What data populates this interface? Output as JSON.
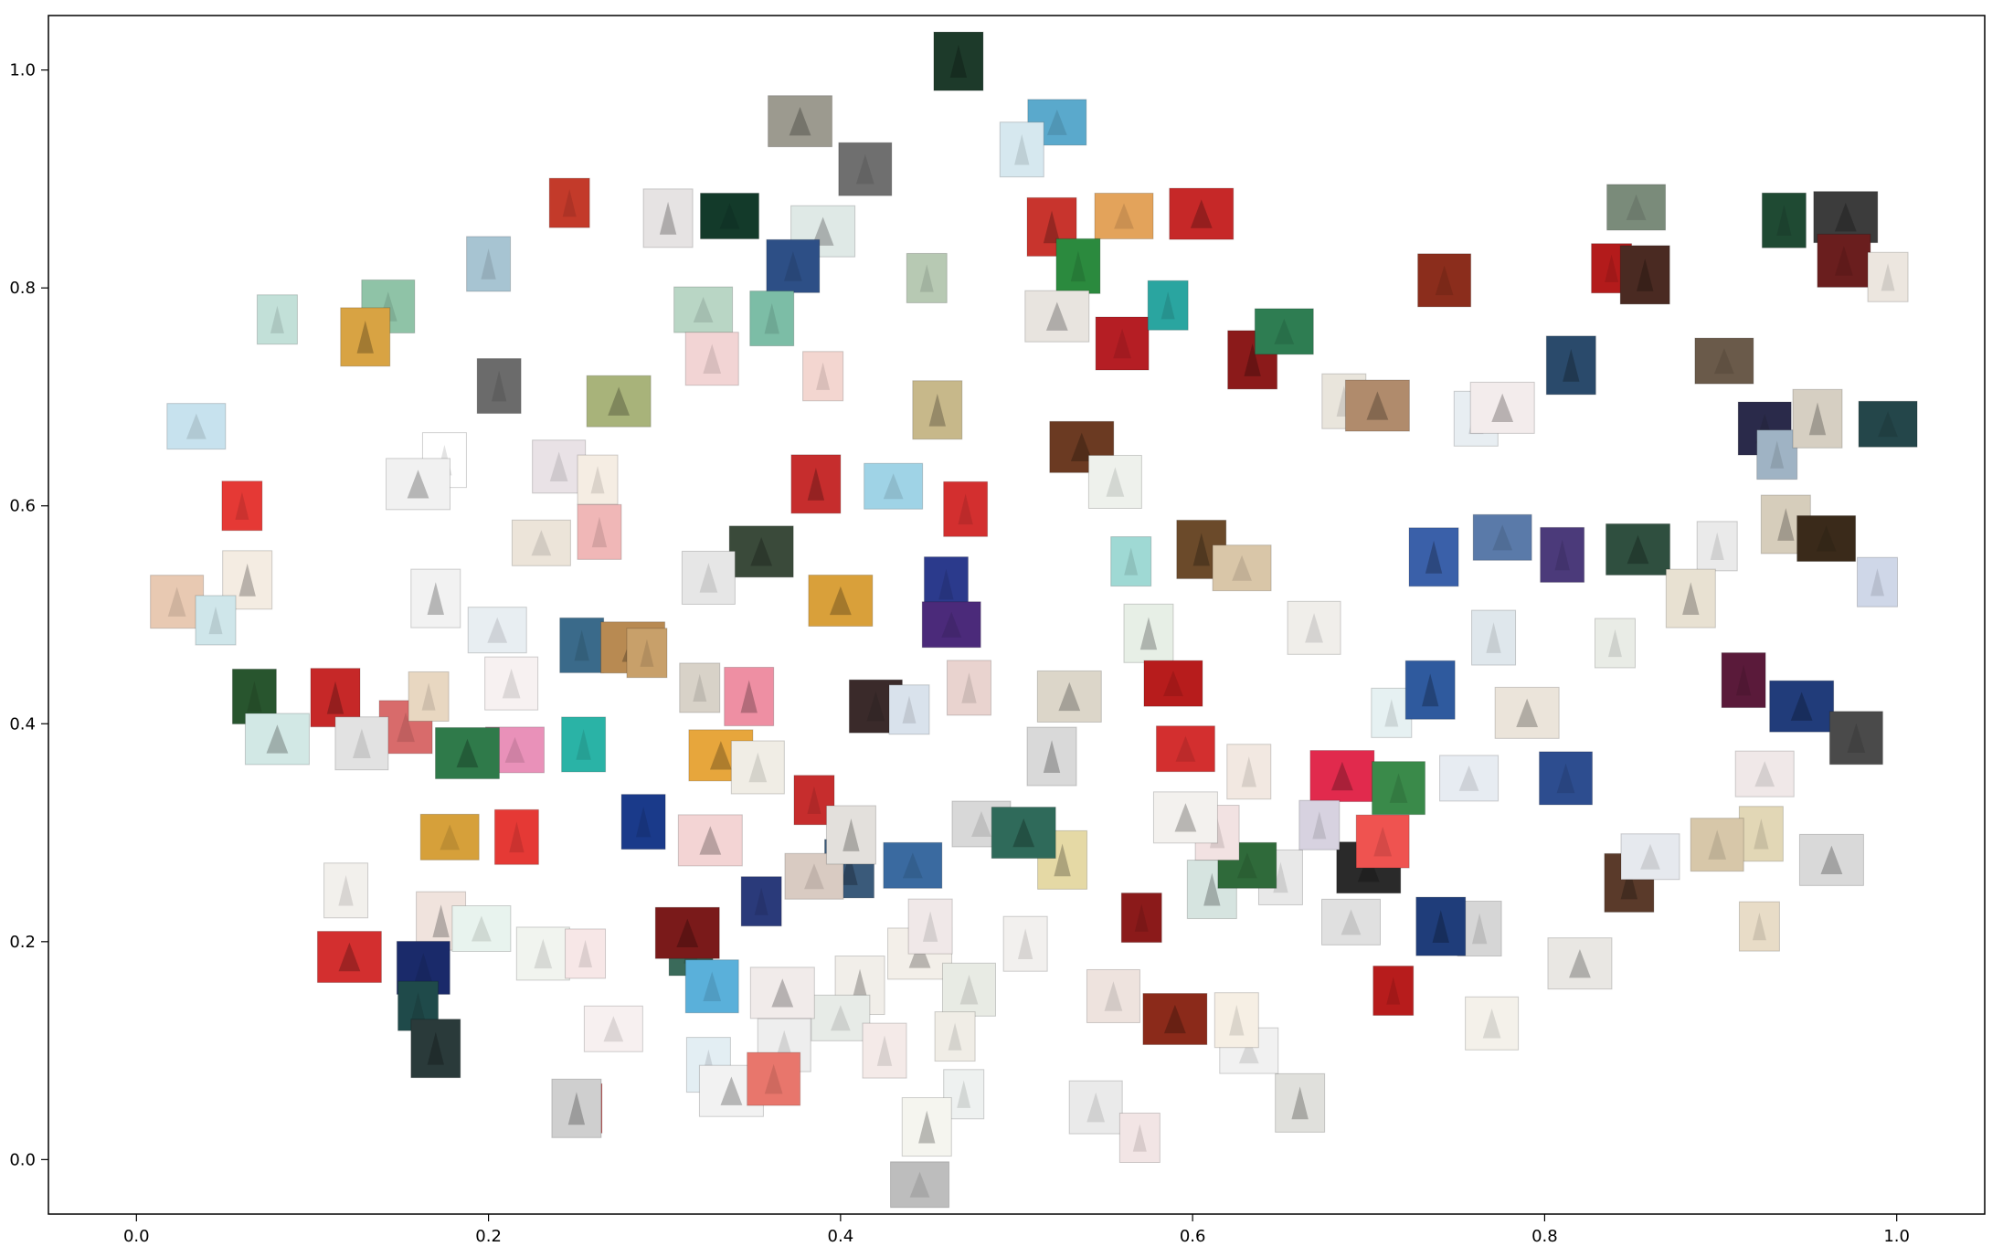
{
  "chart_data": {
    "type": "scatter",
    "title": "",
    "xlabel": "",
    "ylabel": "",
    "xlim": [
      -0.05,
      1.05
    ],
    "ylim": [
      -0.05,
      1.05
    ],
    "grid": false,
    "x_ticks": [
      0.0,
      0.2,
      0.4,
      0.6,
      0.8,
      1.0
    ],
    "x_tick_labels": [
      "0.0",
      "0.2",
      "0.4",
      "0.6",
      "0.8",
      "1.0"
    ],
    "y_ticks": [
      0.0,
      0.2,
      0.4,
      0.6,
      0.8,
      1.0
    ],
    "y_tick_labels": [
      "0.0",
      "0.2",
      "0.4",
      "0.6",
      "0.8",
      "1.0"
    ],
    "marker": "thumbnail-image",
    "points": [
      {
        "x": 0.467,
        "y": 1.008,
        "color": "#1d3a2a"
      },
      {
        "x": 0.523,
        "y": 0.952,
        "color": "#5aa9cc"
      },
      {
        "x": 0.503,
        "y": 0.927,
        "color": "#d6e8ef"
      },
      {
        "x": 0.377,
        "y": 0.953,
        "color": "#9c9a8f"
      },
      {
        "x": 0.414,
        "y": 0.909,
        "color": "#6f6f6f"
      },
      {
        "x": 0.246,
        "y": 0.878,
        "color": "#c33a2a"
      },
      {
        "x": 0.302,
        "y": 0.864,
        "color": "#e6e3e3"
      },
      {
        "x": 0.337,
        "y": 0.866,
        "color": "#133a2a"
      },
      {
        "x": 0.2,
        "y": 0.822,
        "color": "#a7c4d2"
      },
      {
        "x": 0.39,
        "y": 0.852,
        "color": "#dfe9e6"
      },
      {
        "x": 0.373,
        "y": 0.82,
        "color": "#2d4f86"
      },
      {
        "x": 0.449,
        "y": 0.809,
        "color": "#b7c9b3"
      },
      {
        "x": 0.52,
        "y": 0.856,
        "color": "#c8342d"
      },
      {
        "x": 0.561,
        "y": 0.866,
        "color": "#e3a35b"
      },
      {
        "x": 0.535,
        "y": 0.82,
        "color": "#2b8a3e"
      },
      {
        "x": 0.605,
        "y": 0.868,
        "color": "#c62828"
      },
      {
        "x": 0.143,
        "y": 0.783,
        "color": "#8fc3a7"
      },
      {
        "x": 0.08,
        "y": 0.771,
        "color": "#c2e0d8"
      },
      {
        "x": 0.13,
        "y": 0.755,
        "color": "#d8a343"
      },
      {
        "x": 0.322,
        "y": 0.78,
        "color": "#b9d6c5"
      },
      {
        "x": 0.361,
        "y": 0.772,
        "color": "#7cbda6"
      },
      {
        "x": 0.523,
        "y": 0.774,
        "color": "#e8e4df"
      },
      {
        "x": 0.56,
        "y": 0.749,
        "color": "#b51e24"
      },
      {
        "x": 0.586,
        "y": 0.784,
        "color": "#2aa5a0"
      },
      {
        "x": 0.634,
        "y": 0.734,
        "color": "#8b1a1a"
      },
      {
        "x": 0.652,
        "y": 0.76,
        "color": "#2e7d52"
      },
      {
        "x": 0.206,
        "y": 0.71,
        "color": "#6b6b6b"
      },
      {
        "x": 0.274,
        "y": 0.696,
        "color": "#a8b37a"
      },
      {
        "x": 0.327,
        "y": 0.735,
        "color": "#f2d4d4"
      },
      {
        "x": 0.39,
        "y": 0.719,
        "color": "#f3d6d0"
      },
      {
        "x": 0.455,
        "y": 0.688,
        "color": "#c7b88a"
      },
      {
        "x": 0.034,
        "y": 0.673,
        "color": "#c7e2ee"
      },
      {
        "x": 0.686,
        "y": 0.696,
        "color": "#e9e5dc"
      },
      {
        "x": 0.705,
        "y": 0.692,
        "color": "#b08b6c"
      },
      {
        "x": 0.743,
        "y": 0.807,
        "color": "#8b2d1c"
      },
      {
        "x": 0.838,
        "y": 0.818,
        "color": "#b31b1b"
      },
      {
        "x": 0.857,
        "y": 0.812,
        "color": "#4a2a22"
      },
      {
        "x": 0.852,
        "y": 0.874,
        "color": "#7a8b7a"
      },
      {
        "x": 0.936,
        "y": 0.862,
        "color": "#1f4a33"
      },
      {
        "x": 0.971,
        "y": 0.865,
        "color": "#3c3c3c"
      },
      {
        "x": 0.97,
        "y": 0.825,
        "color": "#6a1e1e"
      },
      {
        "x": 0.995,
        "y": 0.81,
        "color": "#ece6df"
      },
      {
        "x": 0.815,
        "y": 0.729,
        "color": "#2a4a6b"
      },
      {
        "x": 0.902,
        "y": 0.733,
        "color": "#6a5a4a"
      },
      {
        "x": 0.761,
        "y": 0.68,
        "color": "#e8eef2"
      },
      {
        "x": 0.776,
        "y": 0.69,
        "color": "#f3ecec"
      },
      {
        "x": 0.925,
        "y": 0.671,
        "color": "#2a2a4a"
      },
      {
        "x": 0.932,
        "y": 0.647,
        "color": "#9fb3c4"
      },
      {
        "x": 0.955,
        "y": 0.68,
        "color": "#d6cfc2"
      },
      {
        "x": 0.995,
        "y": 0.675,
        "color": "#24464a"
      },
      {
        "x": 0.175,
        "y": 0.642,
        "color": "#ffffff"
      },
      {
        "x": 0.16,
        "y": 0.62,
        "color": "#f1f1f1"
      },
      {
        "x": 0.24,
        "y": 0.636,
        "color": "#e9e2e6"
      },
      {
        "x": 0.262,
        "y": 0.624,
        "color": "#f5ede3"
      },
      {
        "x": 0.386,
        "y": 0.62,
        "color": "#c62d2d"
      },
      {
        "x": 0.43,
        "y": 0.618,
        "color": "#9fd3e6"
      },
      {
        "x": 0.471,
        "y": 0.597,
        "color": "#d32f2f"
      },
      {
        "x": 0.537,
        "y": 0.654,
        "color": "#6b3a22"
      },
      {
        "x": 0.556,
        "y": 0.622,
        "color": "#eef1ec"
      },
      {
        "x": 0.06,
        "y": 0.6,
        "color": "#e53935"
      },
      {
        "x": 0.063,
        "y": 0.532,
        "color": "#f4ece2"
      },
      {
        "x": 0.23,
        "y": 0.566,
        "color": "#ece4d9"
      },
      {
        "x": 0.263,
        "y": 0.576,
        "color": "#f0b7b7"
      },
      {
        "x": 0.355,
        "y": 0.558,
        "color": "#3a4a3a"
      },
      {
        "x": 0.325,
        "y": 0.534,
        "color": "#e6e6e6"
      },
      {
        "x": 0.565,
        "y": 0.549,
        "color": "#9fd9d4"
      },
      {
        "x": 0.605,
        "y": 0.56,
        "color": "#6b4a2a"
      },
      {
        "x": 0.628,
        "y": 0.543,
        "color": "#d9c6a8"
      },
      {
        "x": 0.46,
        "y": 0.528,
        "color": "#2b3a8c"
      },
      {
        "x": 0.4,
        "y": 0.513,
        "color": "#d9a03a"
      },
      {
        "x": 0.023,
        "y": 0.512,
        "color": "#e8c9b2"
      },
      {
        "x": 0.045,
        "y": 0.495,
        "color": "#cfe6ea"
      },
      {
        "x": 0.17,
        "y": 0.515,
        "color": "#f2f2f2"
      },
      {
        "x": 0.205,
        "y": 0.486,
        "color": "#e8eef2"
      },
      {
        "x": 0.253,
        "y": 0.472,
        "color": "#3a6a8a"
      },
      {
        "x": 0.282,
        "y": 0.47,
        "color": "#b88a52"
      },
      {
        "x": 0.213,
        "y": 0.437,
        "color": "#f7f1f1"
      },
      {
        "x": 0.32,
        "y": 0.433,
        "color": "#d8d2c8"
      },
      {
        "x": 0.348,
        "y": 0.425,
        "color": "#ee8fa3"
      },
      {
        "x": 0.463,
        "y": 0.491,
        "color": "#4b2a7a"
      },
      {
        "x": 0.473,
        "y": 0.433,
        "color": "#e9d3cf"
      },
      {
        "x": 0.53,
        "y": 0.425,
        "color": "#dcd6c9"
      },
      {
        "x": 0.42,
        "y": 0.416,
        "color": "#3a2a2a"
      },
      {
        "x": 0.439,
        "y": 0.413,
        "color": "#d9e2ec"
      },
      {
        "x": 0.575,
        "y": 0.483,
        "color": "#e7efe6"
      },
      {
        "x": 0.589,
        "y": 0.437,
        "color": "#b71c1c"
      },
      {
        "x": 0.067,
        "y": 0.425,
        "color": "#28552e"
      },
      {
        "x": 0.08,
        "y": 0.386,
        "color": "#d2e8e5"
      },
      {
        "x": 0.153,
        "y": 0.397,
        "color": "#d86b6b"
      },
      {
        "x": 0.166,
        "y": 0.425,
        "color": "#e8d7c1"
      },
      {
        "x": 0.113,
        "y": 0.424,
        "color": "#c62828"
      },
      {
        "x": 0.215,
        "y": 0.376,
        "color": "#e991b9"
      },
      {
        "x": 0.254,
        "y": 0.381,
        "color": "#2ab3a6"
      },
      {
        "x": 0.332,
        "y": 0.371,
        "color": "#e7a63c"
      },
      {
        "x": 0.353,
        "y": 0.36,
        "color": "#f0ede5"
      },
      {
        "x": 0.385,
        "y": 0.33,
        "color": "#c62d2d"
      },
      {
        "x": 0.52,
        "y": 0.37,
        "color": "#d9d9d9"
      },
      {
        "x": 0.596,
        "y": 0.377,
        "color": "#d32f2f"
      },
      {
        "x": 0.632,
        "y": 0.356,
        "color": "#f2e8e1"
      },
      {
        "x": 0.685,
        "y": 0.352,
        "color": "#e12a4d"
      },
      {
        "x": 0.717,
        "y": 0.341,
        "color": "#3a8a4a"
      },
      {
        "x": 0.713,
        "y": 0.41,
        "color": "#e6f1f2"
      },
      {
        "x": 0.735,
        "y": 0.431,
        "color": "#2f5a9e"
      },
      {
        "x": 0.757,
        "y": 0.35,
        "color": "#e7ecf2"
      },
      {
        "x": 0.771,
        "y": 0.479,
        "color": "#dfe7ec"
      },
      {
        "x": 0.79,
        "y": 0.41,
        "color": "#ebe4da"
      },
      {
        "x": 0.812,
        "y": 0.35,
        "color": "#2d4d8f"
      },
      {
        "x": 0.84,
        "y": 0.474,
        "color": "#e9ece6"
      },
      {
        "x": 0.737,
        "y": 0.553,
        "color": "#3a60a9"
      },
      {
        "x": 0.776,
        "y": 0.571,
        "color": "#5a7aa9"
      },
      {
        "x": 0.81,
        "y": 0.555,
        "color": "#4b3a7a"
      },
      {
        "x": 0.853,
        "y": 0.56,
        "color": "#2f4f3f"
      },
      {
        "x": 0.669,
        "y": 0.488,
        "color": "#f0eeea"
      },
      {
        "x": 0.898,
        "y": 0.563,
        "color": "#eaeaea"
      },
      {
        "x": 0.937,
        "y": 0.583,
        "color": "#d6cdbb"
      },
      {
        "x": 0.96,
        "y": 0.57,
        "color": "#3a2a1a"
      },
      {
        "x": 0.913,
        "y": 0.44,
        "color": "#5a1a3a"
      },
      {
        "x": 0.946,
        "y": 0.416,
        "color": "#213c7a"
      },
      {
        "x": 0.977,
        "y": 0.387,
        "color": "#4a4a4a"
      },
      {
        "x": 0.989,
        "y": 0.53,
        "color": "#cfd7e8"
      },
      {
        "x": 0.883,
        "y": 0.515,
        "color": "#e8e1d2"
      },
      {
        "x": 0.925,
        "y": 0.354,
        "color": "#f0e8e8"
      },
      {
        "x": 0.923,
        "y": 0.299,
        "color": "#e2d7b6"
      },
      {
        "x": 0.963,
        "y": 0.275,
        "color": "#d9d9d9"
      },
      {
        "x": 0.898,
        "y": 0.289,
        "color": "#d7c7a9"
      },
      {
        "x": 0.922,
        "y": 0.214,
        "color": "#e8dcc7"
      },
      {
        "x": 0.848,
        "y": 0.254,
        "color": "#5a3a2a"
      },
      {
        "x": 0.86,
        "y": 0.278,
        "color": "#e6e9ee"
      },
      {
        "x": 0.763,
        "y": 0.212,
        "color": "#d6d6d6"
      },
      {
        "x": 0.82,
        "y": 0.18,
        "color": "#e9e7e3"
      },
      {
        "x": 0.77,
        "y": 0.125,
        "color": "#f4f1ea"
      },
      {
        "x": 0.714,
        "y": 0.155,
        "color": "#b71c1c"
      },
      {
        "x": 0.741,
        "y": 0.214,
        "color": "#1f3d7a"
      },
      {
        "x": 0.69,
        "y": 0.218,
        "color": "#e0e0e0"
      },
      {
        "x": 0.65,
        "y": 0.259,
        "color": "#e8e8e8"
      },
      {
        "x": 0.7,
        "y": 0.268,
        "color": "#2a2a2a"
      },
      {
        "x": 0.708,
        "y": 0.292,
        "color": "#ef5350"
      },
      {
        "x": 0.672,
        "y": 0.307,
        "color": "#d7d2e0"
      },
      {
        "x": 0.661,
        "y": 0.052,
        "color": "#e0e0dc"
      },
      {
        "x": 0.632,
        "y": 0.1,
        "color": "#f1f1f1"
      },
      {
        "x": 0.625,
        "y": 0.128,
        "color": "#f6efe4"
      },
      {
        "x": 0.59,
        "y": 0.129,
        "color": "#8b2a1a"
      },
      {
        "x": 0.555,
        "y": 0.15,
        "color": "#eee3de"
      },
      {
        "x": 0.571,
        "y": 0.222,
        "color": "#8b1a1a"
      },
      {
        "x": 0.611,
        "y": 0.248,
        "color": "#d6e4e0"
      },
      {
        "x": 0.631,
        "y": 0.27,
        "color": "#2f6a3a"
      },
      {
        "x": 0.614,
        "y": 0.3,
        "color": "#f2e2e2"
      },
      {
        "x": 0.596,
        "y": 0.314,
        "color": "#f3f1ee"
      },
      {
        "x": 0.545,
        "y": 0.048,
        "color": "#eaeaea"
      },
      {
        "x": 0.57,
        "y": 0.02,
        "color": "#f2e5e5"
      },
      {
        "x": 0.526,
        "y": 0.275,
        "color": "#e5d9a5"
      },
      {
        "x": 0.48,
        "y": 0.308,
        "color": "#d8d8d8"
      },
      {
        "x": 0.505,
        "y": 0.198,
        "color": "#f2f0ee"
      },
      {
        "x": 0.445,
        "y": 0.189,
        "color": "#f3efe9"
      },
      {
        "x": 0.473,
        "y": 0.156,
        "color": "#e8ebe4"
      },
      {
        "x": 0.465,
        "y": 0.113,
        "color": "#f0ede6"
      },
      {
        "x": 0.411,
        "y": 0.16,
        "color": "#f1eee9"
      },
      {
        "x": 0.4,
        "y": 0.13,
        "color": "#e7ebe7"
      },
      {
        "x": 0.425,
        "y": 0.1,
        "color": "#f4eae8"
      },
      {
        "x": 0.367,
        "y": 0.153,
        "color": "#f1ebea"
      },
      {
        "x": 0.368,
        "y": 0.105,
        "color": "#eeeeee"
      },
      {
        "x": 0.47,
        "y": 0.06,
        "color": "#eef1f0"
      },
      {
        "x": 0.449,
        "y": 0.03,
        "color": "#f5f5ef"
      },
      {
        "x": 0.445,
        "y": -0.023,
        "color": "#bdbdbd"
      },
      {
        "x": 0.325,
        "y": 0.087,
        "color": "#e3eef3"
      },
      {
        "x": 0.338,
        "y": 0.063,
        "color": "#f2f2f2"
      },
      {
        "x": 0.362,
        "y": 0.074,
        "color": "#e8766c"
      },
      {
        "x": 0.253,
        "y": 0.047,
        "color": "#c62828"
      },
      {
        "x": 0.25,
        "y": 0.047,
        "color": "#cfcfcf"
      },
      {
        "x": 0.271,
        "y": 0.12,
        "color": "#f7f0f0"
      },
      {
        "x": 0.315,
        "y": 0.194,
        "color": "#3a6a5a"
      },
      {
        "x": 0.313,
        "y": 0.208,
        "color": "#7a1a1a"
      },
      {
        "x": 0.327,
        "y": 0.159,
        "color": "#5ab0da"
      },
      {
        "x": 0.355,
        "y": 0.237,
        "color": "#2a3a7a"
      },
      {
        "x": 0.405,
        "y": 0.267,
        "color": "#3a5a7a"
      },
      {
        "x": 0.385,
        "y": 0.26,
        "color": "#d9cbc2"
      },
      {
        "x": 0.288,
        "y": 0.31,
        "color": "#1a3a8a"
      },
      {
        "x": 0.326,
        "y": 0.293,
        "color": "#f3d4d4"
      },
      {
        "x": 0.231,
        "y": 0.189,
        "color": "#f1f4ef"
      },
      {
        "x": 0.255,
        "y": 0.189,
        "color": "#f7e7e7"
      },
      {
        "x": 0.173,
        "y": 0.219,
        "color": "#f0e3dd"
      },
      {
        "x": 0.196,
        "y": 0.212,
        "color": "#e8f3ee"
      },
      {
        "x": 0.119,
        "y": 0.247,
        "color": "#f2f0ec"
      },
      {
        "x": 0.121,
        "y": 0.186,
        "color": "#d32f2f"
      },
      {
        "x": 0.163,
        "y": 0.176,
        "color": "#1a2a6a"
      },
      {
        "x": 0.16,
        "y": 0.141,
        "color": "#1f4a4a"
      },
      {
        "x": 0.17,
        "y": 0.102,
        "color": "#2a3a3a"
      },
      {
        "x": 0.178,
        "y": 0.296,
        "color": "#d6a03a"
      },
      {
        "x": 0.216,
        "y": 0.296,
        "color": "#e53935"
      },
      {
        "x": 0.188,
        "y": 0.373,
        "color": "#2f7a4a"
      },
      {
        "x": 0.128,
        "y": 0.382,
        "color": "#e2e2e2"
      },
      {
        "x": 0.29,
        "y": 0.465,
        "color": "#c8a06a"
      },
      {
        "x": 0.406,
        "y": 0.298,
        "color": "#e3e0dc"
      },
      {
        "x": 0.441,
        "y": 0.27,
        "color": "#3a6aa0"
      },
      {
        "x": 0.451,
        "y": 0.214,
        "color": "#f0e8e8"
      },
      {
        "x": 0.504,
        "y": 0.3,
        "color": "#2f6a5a"
      }
    ]
  }
}
